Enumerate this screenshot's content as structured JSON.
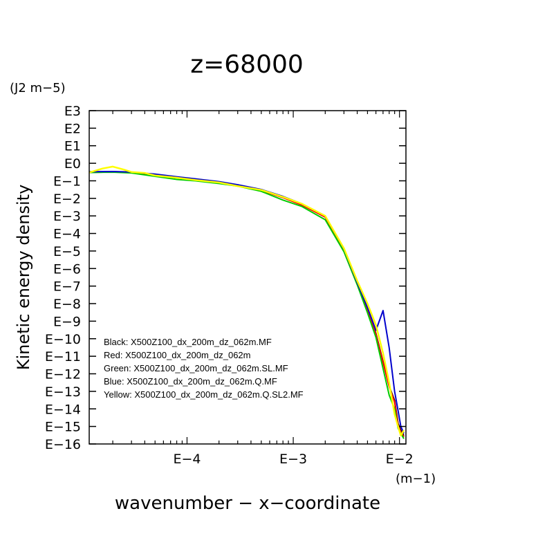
{
  "chart_data": {
    "type": "line",
    "title": "z=68000",
    "ylabel": "Kinetic energy density",
    "yunit": "(J2 m−5)",
    "xlabel": "wavenumber − x−coordinate",
    "xunit": "(m−1)",
    "xscale": "log",
    "yscale": "log",
    "xlim": [
      1.2e-05,
      0.0115
    ],
    "ylim": [
      1e-16,
      1000
    ],
    "grid": false,
    "legend_position": "bottom-left",
    "xticks": [
      {
        "value": 0.0001,
        "label": "E−4"
      },
      {
        "value": 0.001,
        "label": "E−3"
      },
      {
        "value": 0.01,
        "label": "E−2"
      }
    ],
    "yticks": [
      {
        "value": 1000.0,
        "label": "E3"
      },
      {
        "value": 100.0,
        "label": "E2"
      },
      {
        "value": 10.0,
        "label": "E1"
      },
      {
        "value": 1.0,
        "label": "E0"
      },
      {
        "value": 0.1,
        "label": "E−1"
      },
      {
        "value": 0.01,
        "label": "E−2"
      },
      {
        "value": 0.001,
        "label": "E−3"
      },
      {
        "value": 0.0001,
        "label": "E−4"
      },
      {
        "value": 1e-05,
        "label": "E−5"
      },
      {
        "value": 1e-06,
        "label": "E−6"
      },
      {
        "value": 1e-07,
        "label": "E−7"
      },
      {
        "value": 1e-08,
        "label": "E−8"
      },
      {
        "value": 1e-09,
        "label": "E−9"
      },
      {
        "value": 1e-10,
        "label": "E−10"
      },
      {
        "value": 1e-11,
        "label": "E−11"
      },
      {
        "value": 1e-12,
        "label": "E−12"
      },
      {
        "value": 1e-13,
        "label": "E−13"
      },
      {
        "value": 1e-14,
        "label": "E−14"
      },
      {
        "value": 1e-15,
        "label": "E−15"
      },
      {
        "value": 1e-16,
        "label": "E−16"
      }
    ],
    "legend": [
      "Black: X500Z100_dx_200m_dz_062m.MF",
      "Red: X500Z100_dx_200m_dz_062m",
      "Green: X500Z100_dx_200m_dz_062m.SL.MF",
      "Blue: X500Z100_dx_200m_dz_062m.Q.MF",
      "Yellow: X500Z100_dx_200m_dz_062m.Q.SL2.MF"
    ],
    "series": [
      {
        "color": "#000000",
        "x": [
          1.2e-05,
          2e-05,
          3e-05,
          5e-05,
          8e-05,
          0.00012,
          0.0002,
          0.0003,
          0.0005,
          0.0008,
          0.0012,
          0.002,
          0.003,
          0.004,
          0.005,
          0.006,
          0.007,
          0.008,
          0.009,
          0.0097,
          0.0103,
          0.011
        ],
        "y": [
          0.3,
          0.32,
          0.3,
          0.22,
          0.16,
          0.12,
          0.085,
          0.055,
          0.03,
          0.012,
          0.0045,
          0.0009,
          1.2e-05,
          1.5e-07,
          5e-09,
          2e-10,
          5e-12,
          2e-13,
          3e-14,
          1.5e-15,
          6e-16,
          3e-16
        ]
      },
      {
        "color": "#ff0000",
        "x": [
          1.2e-05,
          2e-05,
          3e-05,
          5e-05,
          8e-05,
          0.00012,
          0.0002,
          0.0003,
          0.0005,
          0.0008,
          0.0012,
          0.002,
          0.003,
          0.004,
          0.005,
          0.006,
          0.007,
          0.008,
          0.009,
          0.0097,
          0.0103,
          0.011
        ],
        "y": [
          0.31,
          0.33,
          0.31,
          0.23,
          0.16,
          0.12,
          0.08,
          0.05,
          0.028,
          0.011,
          0.0042,
          0.00085,
          1.1e-05,
          1.4e-07,
          4.5e-09,
          1.8e-10,
          4.5e-12,
          1.8e-13,
          2.5e-14,
          1.2e-15,
          5e-16,
          2.5e-16
        ]
      },
      {
        "color": "#00cc00",
        "x": [
          1.2e-05,
          2e-05,
          3e-05,
          5e-05,
          8e-05,
          0.00012,
          0.0002,
          0.0003,
          0.0005,
          0.0008,
          0.0012,
          0.002,
          0.003,
          0.004,
          0.005,
          0.006,
          0.007,
          0.008,
          0.009,
          0.0097,
          0.0103,
          0.011
        ],
        "y": [
          0.3,
          0.31,
          0.28,
          0.18,
          0.12,
          0.1,
          0.07,
          0.05,
          0.025,
          0.008,
          0.0035,
          0.0006,
          9e-06,
          1.2e-07,
          3e-09,
          1.2e-10,
          2e-12,
          6e-14,
          1e-14,
          8e-16,
          4e-16,
          2e-16
        ]
      },
      {
        "color": "#0000cc",
        "x": [
          1.2e-05,
          2e-05,
          3e-05,
          5e-05,
          8e-05,
          0.00012,
          0.0002,
          0.0003,
          0.0005,
          0.0008,
          0.0012,
          0.002,
          0.003,
          0.004,
          0.005,
          0.006,
          0.007,
          0.008,
          0.009,
          0.0097,
          0.0103,
          0.011
        ],
        "y": [
          0.33,
          0.34,
          0.32,
          0.24,
          0.17,
          0.13,
          0.09,
          0.06,
          0.032,
          0.013,
          0.005,
          0.001,
          1.3e-05,
          1.6e-07,
          6e-09,
          3e-10,
          4e-09,
          3e-11,
          1e-13,
          8e-15,
          1e-15,
          4e-16
        ]
      },
      {
        "color": "#ffff00",
        "x": [
          1.2e-05,
          1.6e-05,
          2e-05,
          2.5e-05,
          3e-05,
          4e-05,
          5e-05,
          8e-05,
          0.00012,
          0.0002,
          0.0003,
          0.0005,
          0.0008,
          0.0012,
          0.002,
          0.003,
          0.004,
          0.005,
          0.006,
          0.007,
          0.008,
          0.009,
          0.0097,
          0.0103,
          0.011
        ],
        "y": [
          0.3,
          0.5,
          0.65,
          0.45,
          0.32,
          0.28,
          0.2,
          0.15,
          0.11,
          0.08,
          0.05,
          0.03,
          0.012,
          0.005,
          0.001,
          1.4e-05,
          2e-07,
          1e-08,
          6e-10,
          1.5e-11,
          3e-13,
          5e-15,
          1e-15,
          3e-16,
          6e-16
        ]
      }
    ]
  }
}
